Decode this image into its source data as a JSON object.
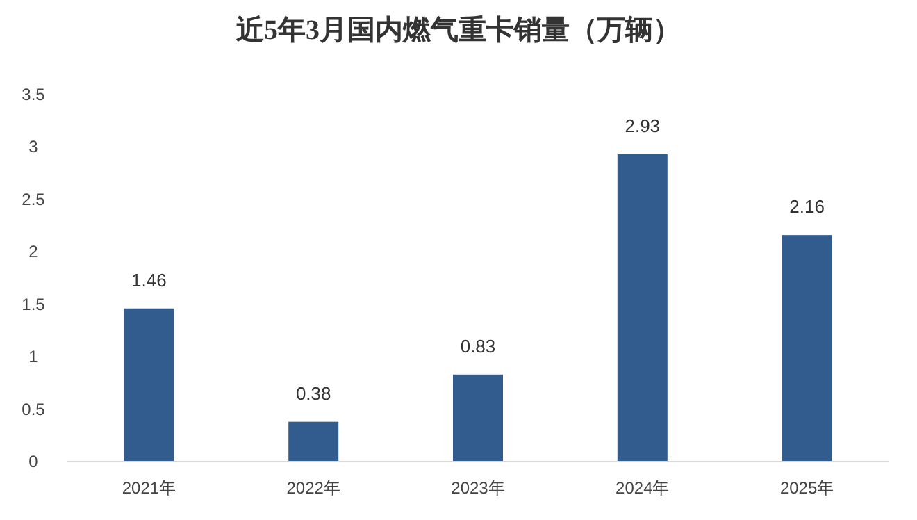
{
  "chart_data": {
    "type": "bar",
    "title": "近5年3月国内燃气重卡销量（万辆）",
    "categories": [
      "2021年",
      "2022年",
      "2023年",
      "2024年",
      "2025年"
    ],
    "values": [
      1.46,
      0.38,
      0.83,
      2.93,
      2.16
    ],
    "color": "#335c8e",
    "ylim": [
      0,
      3.5
    ],
    "yticks": [
      0,
      0.5,
      1,
      1.5,
      2,
      2.5,
      3,
      3.5
    ],
    "data_labels": true,
    "grid": false
  }
}
